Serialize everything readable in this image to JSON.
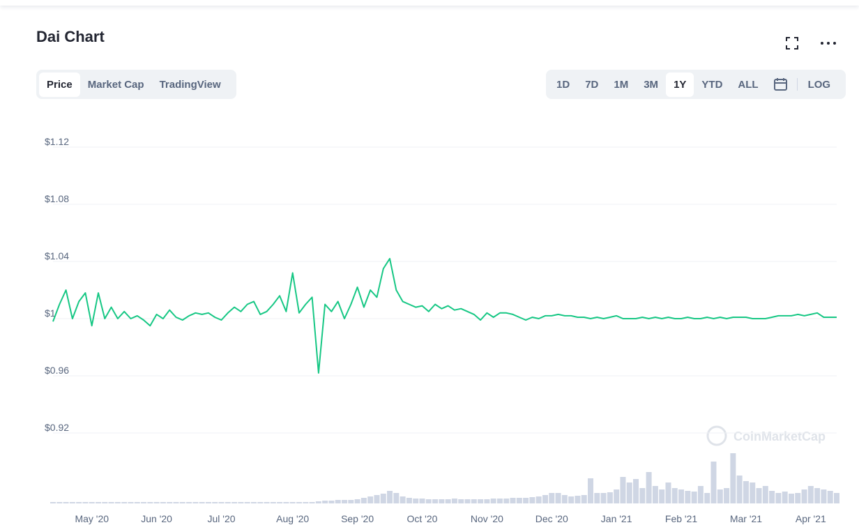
{
  "header": {
    "title": "Dai Chart"
  },
  "tabs": [
    "Price",
    "Market Cap",
    "TradingView"
  ],
  "ranges": [
    "1D",
    "7D",
    "1M",
    "3M",
    "1Y",
    "YTD",
    "ALL"
  ],
  "log": "LOG",
  "watermark": "CoinMarketCap",
  "chart_data": {
    "type": "line",
    "color": "#16c784",
    "volume_color": "#cfd6e4",
    "grid": true,
    "ylim": [
      0.88,
      1.14
    ],
    "yticks": [
      {
        "value": 0.92,
        "label": "$0.92"
      },
      {
        "value": 0.96,
        "label": "$0.96"
      },
      {
        "value": 1,
        "label": "$1"
      },
      {
        "value": 1.04,
        "label": "$1.04"
      },
      {
        "value": 1.08,
        "label": "$1.08"
      },
      {
        "value": 1.12,
        "label": "$1.12"
      }
    ],
    "y2lim": [
      0,
      80
    ],
    "categories": [
      null,
      null,
      null,
      null,
      null,
      null,
      "May '20",
      null,
      null,
      null,
      null,
      null,
      null,
      null,
      null,
      null,
      "Jun '20",
      null,
      null,
      null,
      null,
      null,
      null,
      null,
      null,
      null,
      "Jul '20",
      null,
      null,
      null,
      null,
      null,
      null,
      null,
      null,
      null,
      null,
      "Aug '20",
      null,
      null,
      null,
      null,
      null,
      null,
      null,
      null,
      null,
      "Sep '20",
      null,
      null,
      null,
      null,
      null,
      null,
      null,
      null,
      null,
      "Oct '20",
      null,
      null,
      null,
      null,
      null,
      null,
      null,
      null,
      null,
      "Nov '20",
      null,
      null,
      null,
      null,
      null,
      null,
      null,
      null,
      null,
      "Dec '20",
      null,
      null,
      null,
      null,
      null,
      null,
      null,
      null,
      null,
      "Jan '21",
      null,
      null,
      null,
      null,
      null,
      null,
      null,
      null,
      null,
      "Feb '21",
      null,
      null,
      null,
      null,
      null,
      null,
      null,
      null,
      null,
      "Mar '21",
      null,
      null,
      null,
      null,
      null,
      null,
      null,
      null,
      null,
      "Apr '21",
      null,
      null,
      null,
      null
    ],
    "values": [
      0.998,
      1.01,
      1.02,
      1.0,
      1.012,
      1.018,
      0.995,
      1.018,
      1.0,
      1.008,
      1.0,
      1.005,
      1.0,
      1.002,
      0.999,
      0.995,
      1.003,
      1.0,
      1.006,
      1.001,
      0.999,
      1.002,
      1.004,
      1.003,
      1.004,
      1.001,
      0.999,
      1.004,
      1.008,
      1.005,
      1.01,
      1.012,
      1.003,
      1.005,
      1.01,
      1.016,
      1.005,
      1.032,
      1.004,
      1.01,
      1.015,
      0.962,
      1.01,
      1.005,
      1.012,
      1.0,
      1.01,
      1.022,
      1.008,
      1.02,
      1.015,
      1.035,
      1.042,
      1.02,
      1.012,
      1.01,
      1.008,
      1.009,
      1.005,
      1.01,
      1.007,
      1.009,
      1.006,
      1.007,
      1.005,
      1.003,
      0.999,
      1.004,
      1.001,
      1.004,
      1.004,
      1.003,
      1.001,
      0.999,
      1.001,
      1.0,
      1.002,
      1.002,
      1.003,
      1.002,
      1.002,
      1.001,
      1.001,
      1.0,
      1.001,
      1.0,
      1.001,
      1.002,
      1.0,
      1.0,
      1.0,
      1.001,
      1.0,
      1.001,
      1.0,
      1.001,
      1.0,
      1.0,
      1.001,
      1.0,
      1.0,
      1.001,
      1.0,
      1.001,
      1.0,
      1.001,
      1.001,
      1.001,
      1.0,
      1.0,
      1.0,
      1.001,
      1.002,
      1.002,
      1.002,
      1.003,
      1.002,
      1.003,
      1.004,
      1.001,
      1.001,
      1.001
    ],
    "volume": [
      2,
      2,
      2,
      2,
      2,
      2,
      2,
      2,
      2,
      2,
      2,
      2,
      2,
      2,
      2,
      2,
      2,
      2,
      2,
      2,
      2,
      2,
      2,
      2,
      2,
      2,
      2,
      2,
      2,
      2,
      2,
      2,
      2,
      2,
      2,
      2,
      2,
      2,
      2,
      2,
      2,
      3,
      4,
      4,
      5,
      5,
      5,
      6,
      8,
      10,
      12,
      14,
      18,
      15,
      10,
      8,
      7,
      7,
      6,
      6,
      6,
      6,
      7,
      6,
      6,
      6,
      6,
      6,
      7,
      7,
      7,
      8,
      8,
      8,
      9,
      10,
      12,
      15,
      15,
      12,
      10,
      11,
      12,
      36,
      15,
      15,
      16,
      20,
      38,
      30,
      35,
      22,
      45,
      25,
      20,
      30,
      22,
      20,
      18,
      17,
      25,
      15,
      60,
      20,
      22,
      72,
      40,
      32,
      30,
      22,
      25,
      18,
      15,
      17,
      14,
      15,
      20,
      25,
      22,
      20,
      18,
      15
    ]
  }
}
